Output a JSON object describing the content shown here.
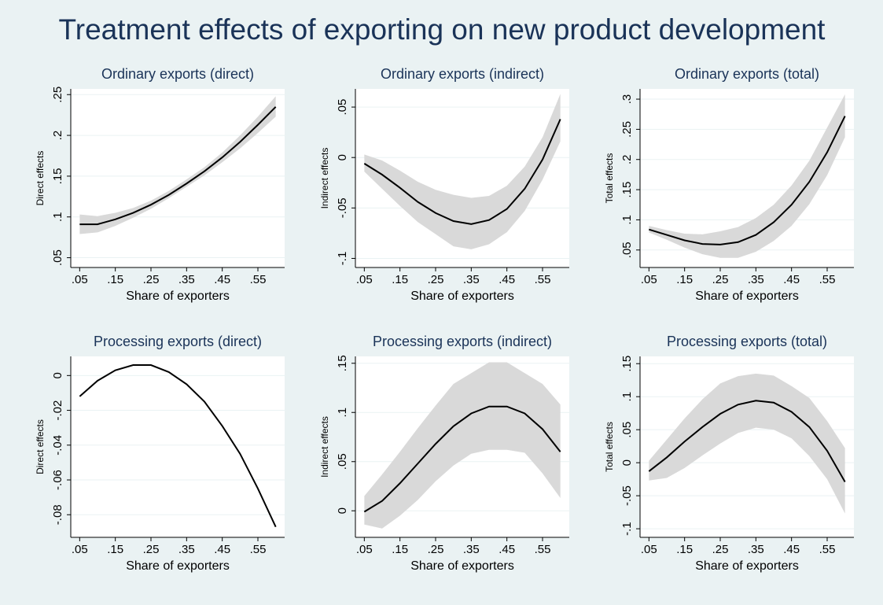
{
  "title": "Treatment effects of exporting on new product development",
  "chart_data": [
    {
      "type": "line",
      "title": "Ordinary exports (direct)",
      "xlabel": "Share of exporters",
      "ylabel": "Direct effects",
      "x": [
        0.05,
        0.1,
        0.15,
        0.2,
        0.25,
        0.3,
        0.35,
        0.4,
        0.45,
        0.5,
        0.55,
        0.6
      ],
      "values": [
        0.091,
        0.091,
        0.097,
        0.105,
        0.115,
        0.127,
        0.141,
        0.156,
        0.173,
        0.192,
        0.213,
        0.235
      ],
      "ci_lower": [
        0.079,
        0.081,
        0.089,
        0.099,
        0.11,
        0.123,
        0.137,
        0.151,
        0.167,
        0.184,
        0.203,
        0.223
      ],
      "ci_upper": [
        0.103,
        0.101,
        0.105,
        0.111,
        0.12,
        0.132,
        0.146,
        0.161,
        0.179,
        0.2,
        0.223,
        0.248
      ],
      "color": "#000000",
      "band_color": "#d9d9d9",
      "xlim": [
        0.025,
        0.625
      ],
      "xticks": [
        {
          "value": 0.05,
          "label": ".05"
        },
        {
          "value": 0.15,
          "label": ".15"
        },
        {
          "value": 0.25,
          "label": ".25"
        },
        {
          "value": 0.35,
          "label": ".35"
        },
        {
          "value": 0.45,
          "label": ".45"
        },
        {
          "value": 0.55,
          "label": ".55"
        }
      ],
      "ylim": [
        0.038,
        0.257
      ],
      "yticks": [
        {
          "value": 0.05,
          "label": ".05"
        },
        {
          "value": 0.1,
          "label": ".1"
        },
        {
          "value": 0.15,
          "label": ".15"
        },
        {
          "value": 0.2,
          "label": ".2"
        },
        {
          "value": 0.25,
          "label": ".25"
        }
      ],
      "grid": true
    },
    {
      "type": "line",
      "title": "Ordinary exports (indirect)",
      "xlabel": "Share of exporters",
      "ylabel": "Indirect effects",
      "x": [
        0.05,
        0.1,
        0.15,
        0.2,
        0.25,
        0.3,
        0.35,
        0.4,
        0.45,
        0.5,
        0.55,
        0.6
      ],
      "values": [
        -0.006,
        -0.017,
        -0.03,
        -0.044,
        -0.055,
        -0.063,
        -0.066,
        -0.062,
        -0.051,
        -0.031,
        -0.002,
        0.038
      ],
      "ci_lower": [
        -0.014,
        -0.031,
        -0.048,
        -0.064,
        -0.076,
        -0.088,
        -0.091,
        -0.086,
        -0.074,
        -0.053,
        -0.022,
        0.016
      ],
      "ci_upper": [
        0.003,
        -0.003,
        -0.013,
        -0.024,
        -0.032,
        -0.037,
        -0.04,
        -0.038,
        -0.028,
        -0.009,
        0.02,
        0.063
      ],
      "color": "#000000",
      "band_color": "#d9d9d9",
      "xlim": [
        0.025,
        0.625
      ],
      "xticks": [
        {
          "value": 0.05,
          "label": ".05"
        },
        {
          "value": 0.15,
          "label": ".15"
        },
        {
          "value": 0.25,
          "label": ".25"
        },
        {
          "value": 0.35,
          "label": ".35"
        },
        {
          "value": 0.45,
          "label": ".45"
        },
        {
          "value": 0.55,
          "label": ".55"
        }
      ],
      "ylim": [
        -0.109,
        0.068
      ],
      "yticks": [
        {
          "value": -0.1,
          "label": "-.1"
        },
        {
          "value": -0.05,
          "label": "-.05"
        },
        0,
        {
          "value": 0.05,
          "label": ".05"
        }
      ],
      "grid": true
    },
    {
      "type": "line",
      "title": "Ordinary exports (total)",
      "xlabel": "Share of exporters",
      "ylabel": "Total effects",
      "x": [
        0.05,
        0.1,
        0.15,
        0.2,
        0.25,
        0.3,
        0.35,
        0.4,
        0.45,
        0.5,
        0.55,
        0.6
      ],
      "values": [
        0.084,
        0.075,
        0.066,
        0.06,
        0.059,
        0.063,
        0.075,
        0.096,
        0.125,
        0.163,
        0.212,
        0.272
      ],
      "ci_lower": [
        0.079,
        0.067,
        0.054,
        0.043,
        0.037,
        0.037,
        0.047,
        0.065,
        0.09,
        0.126,
        0.174,
        0.237
      ],
      "ci_upper": [
        0.09,
        0.083,
        0.077,
        0.076,
        0.081,
        0.088,
        0.103,
        0.125,
        0.157,
        0.198,
        0.253,
        0.308
      ],
      "color": "#000000",
      "band_color": "#d9d9d9",
      "xlim": [
        0.025,
        0.625
      ],
      "xticks": [
        {
          "value": 0.05,
          "label": ".05"
        },
        {
          "value": 0.15,
          "label": ".15"
        },
        {
          "value": 0.25,
          "label": ".25"
        },
        {
          "value": 0.35,
          "label": ".35"
        },
        {
          "value": 0.45,
          "label": ".45"
        },
        {
          "value": 0.55,
          "label": ".55"
        }
      ],
      "ylim": [
        0.021,
        0.317
      ],
      "yticks": [
        {
          "value": 0.05,
          "label": ".05"
        },
        {
          "value": 0.1,
          "label": ".1"
        },
        {
          "value": 0.15,
          "label": ".15"
        },
        {
          "value": 0.2,
          "label": ".2"
        },
        {
          "value": 0.25,
          "label": ".25"
        },
        {
          "value": 0.3,
          "label": ".3"
        }
      ],
      "grid": true
    },
    {
      "type": "line",
      "title": "Processing exports (direct)",
      "xlabel": "Share of exporters",
      "ylabel": "Direct effects",
      "x": [
        0.05,
        0.1,
        0.15,
        0.2,
        0.25,
        0.3,
        0.35,
        0.4,
        0.45,
        0.5,
        0.55,
        0.6
      ],
      "values": [
        -0.012,
        -0.003,
        0.003,
        0.006,
        0.006,
        0.002,
        -0.005,
        -0.015,
        -0.029,
        -0.045,
        -0.065,
        -0.087
      ],
      "color": "#000000",
      "xlim": [
        0.025,
        0.625
      ],
      "xticks": [
        {
          "value": 0.05,
          "label": ".05"
        },
        {
          "value": 0.15,
          "label": ".15"
        },
        {
          "value": 0.25,
          "label": ".25"
        },
        {
          "value": 0.35,
          "label": ".35"
        },
        {
          "value": 0.45,
          "label": ".45"
        },
        {
          "value": 0.55,
          "label": ".55"
        }
      ],
      "ylim": [
        -0.093,
        0.011
      ],
      "yticks": [
        {
          "value": -0.08,
          "label": "-.08"
        },
        {
          "value": -0.06,
          "label": "-.06"
        },
        {
          "value": -0.04,
          "label": "-.04"
        },
        {
          "value": -0.02,
          "label": "-.02"
        },
        0
      ],
      "grid": true
    },
    {
      "type": "line",
      "title": "Processing exports (indirect)",
      "xlabel": "Share of exporters",
      "ylabel": "Indirect effects",
      "x": [
        0.05,
        0.1,
        0.15,
        0.2,
        0.25,
        0.3,
        0.35,
        0.4,
        0.45,
        0.5,
        0.55,
        0.6
      ],
      "values": [
        -0.001,
        0.01,
        0.028,
        0.048,
        0.068,
        0.086,
        0.099,
        0.106,
        0.106,
        0.099,
        0.083,
        0.06
      ],
      "ci_lower": [
        -0.014,
        -0.018,
        -0.005,
        0.011,
        0.03,
        0.046,
        0.058,
        0.062,
        0.062,
        0.059,
        0.038,
        0.013
      ],
      "ci_upper": [
        0.015,
        0.037,
        0.06,
        0.084,
        0.107,
        0.129,
        0.14,
        0.151,
        0.151,
        0.14,
        0.129,
        0.108
      ],
      "color": "#000000",
      "band_color": "#d9d9d9",
      "xlim": [
        0.025,
        0.625
      ],
      "xticks": [
        {
          "value": 0.05,
          "label": ".05"
        },
        {
          "value": 0.15,
          "label": ".15"
        },
        {
          "value": 0.25,
          "label": ".25"
        },
        {
          "value": 0.35,
          "label": ".35"
        },
        {
          "value": 0.45,
          "label": ".45"
        },
        {
          "value": 0.55,
          "label": ".55"
        }
      ],
      "ylim": [
        -0.027,
        0.157
      ],
      "yticks": [
        0,
        {
          "value": 0.05,
          "label": ".05"
        },
        {
          "value": 0.1,
          "label": ".1"
        },
        {
          "value": 0.15,
          "label": ".15"
        }
      ],
      "grid": true
    },
    {
      "type": "line",
      "title": "Processing exports (total)",
      "xlabel": "Share of exporters",
      "ylabel": "Total effects",
      "x": [
        0.05,
        0.1,
        0.15,
        0.2,
        0.25,
        0.3,
        0.35,
        0.4,
        0.45,
        0.5,
        0.55,
        0.6
      ],
      "values": [
        -0.013,
        0.008,
        0.032,
        0.054,
        0.074,
        0.088,
        0.094,
        0.091,
        0.077,
        0.054,
        0.018,
        -0.029
      ],
      "ci_lower": [
        -0.027,
        -0.023,
        -0.008,
        0.011,
        0.029,
        0.045,
        0.053,
        0.05,
        0.037,
        0.01,
        -0.025,
        -0.077
      ],
      "ci_upper": [
        0.003,
        0.035,
        0.067,
        0.096,
        0.12,
        0.131,
        0.135,
        0.132,
        0.116,
        0.098,
        0.063,
        0.022
      ],
      "color": "#000000",
      "band_color": "#d9d9d9",
      "xlim": [
        0.025,
        0.625
      ],
      "xticks": [
        {
          "value": 0.05,
          "label": ".05"
        },
        {
          "value": 0.15,
          "label": ".15"
        },
        {
          "value": 0.25,
          "label": ".25"
        },
        {
          "value": 0.35,
          "label": ".35"
        },
        {
          "value": 0.45,
          "label": ".45"
        },
        {
          "value": 0.55,
          "label": ".55"
        }
      ],
      "ylim": [
        -0.113,
        0.161
      ],
      "yticks": [
        {
          "value": -0.1,
          "label": "-.1"
        },
        {
          "value": -0.05,
          "label": "-.05"
        },
        0,
        {
          "value": 0.05,
          "label": ".05"
        },
        {
          "value": 0.1,
          "label": ".1"
        },
        {
          "value": 0.15,
          "label": ".15"
        }
      ],
      "grid": true
    }
  ]
}
